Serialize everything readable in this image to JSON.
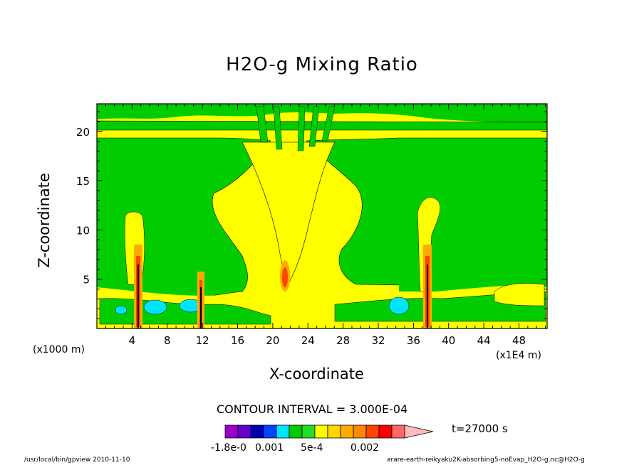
{
  "chart_data": {
    "type": "heatmap",
    "title": "H2O-g Mixing Ratio",
    "xlabel": "X-coordinate",
    "ylabel": "Z-coordinate",
    "x_unit_note": "(x1E4 m)",
    "z_unit_note": "(x1000 m)",
    "xlim": [
      0,
      51.2
    ],
    "ylim": [
      0,
      22.8
    ],
    "x_ticks": [
      "4",
      "8",
      "12",
      "16",
      "20",
      "24",
      "28",
      "32",
      "36",
      "40",
      "44",
      "48"
    ],
    "y_ticks": [
      "5",
      "10",
      "15",
      "20"
    ],
    "contour_interval_text": "CONTOUR INTERVAL = 3.000E-04",
    "time_text": "t=27000 s",
    "legend_labels": [
      "-1.8e-0",
      "0.001",
      "5e-4",
      "0.002"
    ],
    "legend_colors": [
      "#9900cc",
      "#6600cc",
      "#0000aa",
      "#0044ff",
      "#00e5ff",
      "#00cc00",
      "#22dd22",
      "#ffff00",
      "#ffd700",
      "#ffaa00",
      "#ff8800",
      "#ff4400",
      "#ff0000",
      "#ff6666",
      "#ffbbbb"
    ],
    "convective_towers_x": [
      4.8,
      11.8,
      21.2,
      37.6
    ],
    "dry_patch_x": [
      7.2,
      10.3,
      34.8
    ]
  },
  "footer": {
    "left": "/usr/local/bin/gpview  2010-11-10",
    "right": "arare-earth-reikyaku2K-absorbing5-noEvap_H2O-g.nc@H2O-g"
  }
}
